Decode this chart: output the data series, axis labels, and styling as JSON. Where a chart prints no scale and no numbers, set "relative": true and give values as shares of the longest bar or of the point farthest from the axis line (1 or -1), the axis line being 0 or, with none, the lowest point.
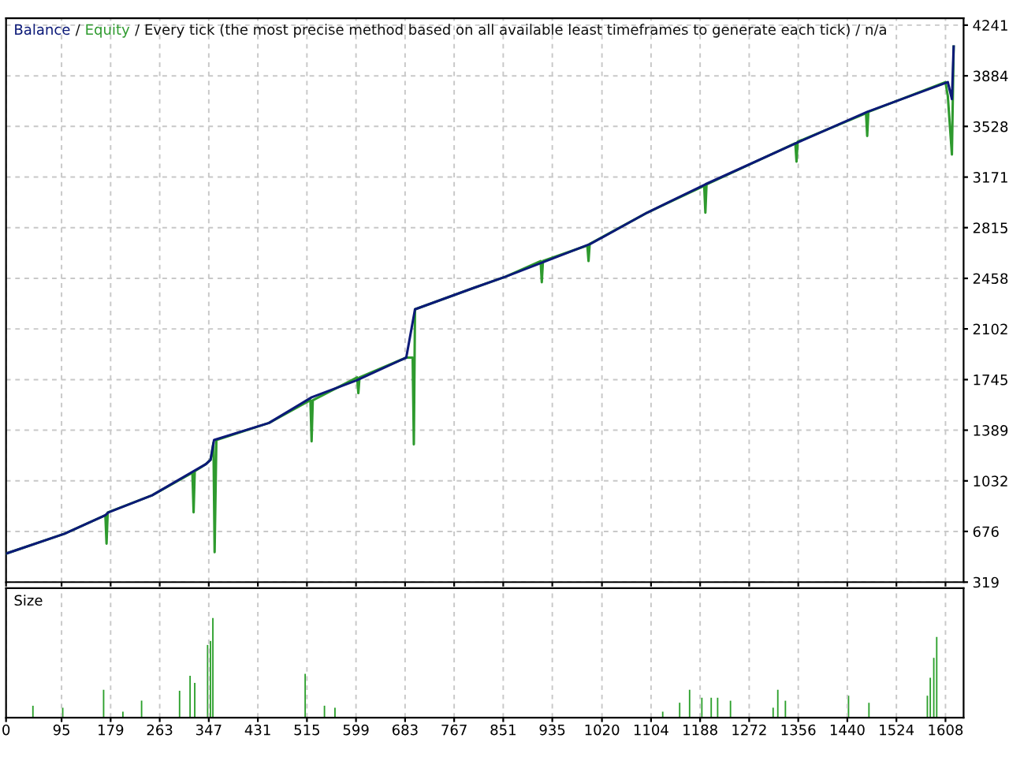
{
  "chart_data": [
    {
      "type": "line",
      "annotations": [
        "/"
      ],
      "subtitle": "/ Every tick (the most precise method based on all available least timeframes to generate each tick) / n/a",
      "series": [
        {
          "name": "Balance",
          "color": "#0c1a78",
          "x": [
            0,
            100,
            170,
            175,
            250,
            342,
            350,
            356,
            450,
            523,
            600,
            685,
            700,
            800,
            855,
            1000,
            1097,
            1197,
            1358,
            1474,
            1612,
            1619,
            1622
          ],
          "values": [
            520,
            660,
            790,
            810,
            930,
            1150,
            1180,
            1320,
            1440,
            1620,
            1740,
            1900,
            2240,
            2390,
            2470,
            2700,
            2920,
            3120,
            3420,
            3630,
            3840,
            3720,
            4090
          ]
        },
        {
          "name": "Equity",
          "color": "#2e9a2e",
          "x": [
            0,
            100,
            170,
            172,
            174,
            250,
            319,
            321,
            323,
            342,
            350,
            355,
            357,
            360,
            450,
            521,
            523,
            525,
            601,
            603,
            605,
            685,
            696,
            698,
            700,
            800,
            855,
            915,
            917,
            919,
            995,
            997,
            999,
            1097,
            1195,
            1197,
            1199,
            1351,
            1353,
            1355,
            1472,
            1474,
            1476,
            1608,
            1612,
            1619,
            1622
          ],
          "values": [
            520,
            660,
            790,
            590,
            810,
            930,
            1090,
            810,
            1100,
            1150,
            1180,
            1300,
            530,
            1320,
            1440,
            1600,
            1310,
            1600,
            1760,
            1650,
            1760,
            1900,
            1900,
            1290,
            2240,
            2390,
            2470,
            2580,
            2430,
            2580,
            2690,
            2580,
            2700,
            2920,
            3110,
            2920,
            3120,
            3410,
            3280,
            3420,
            3620,
            3460,
            3630,
            3840,
            3740,
            3330,
            4090
          ]
        }
      ],
      "xlim": [
        0,
        1639
      ],
      "ylim": [
        319,
        4290
      ],
      "yticks": [
        319,
        676,
        1032,
        1389,
        1745,
        2102,
        2458,
        2815,
        3171,
        3528,
        3884,
        4241
      ],
      "grid": true,
      "line_style": "solid",
      "tick_labels": "y"
    },
    {
      "type": "bar",
      "title": "Size",
      "relative": true,
      "color": "#2ca02c",
      "x": [
        46,
        97,
        167,
        200,
        232,
        297,
        315,
        323,
        345,
        350,
        354,
        512,
        545,
        563,
        1124,
        1153,
        1170,
        1191,
        1207,
        1218,
        1240,
        1313,
        1321,
        1334,
        1442,
        1477,
        1577,
        1582,
        1588,
        1593
      ],
      "values": [
        0.12,
        0.1,
        0.28,
        0.06,
        0.17,
        0.27,
        0.42,
        0.35,
        0.73,
        0.77,
        1,
        0.44,
        0.12,
        0.1,
        0.06,
        0.15,
        0.28,
        0.2,
        0.2,
        0.2,
        0.17,
        0.1,
        0.28,
        0.17,
        0.22,
        0.15,
        0.22,
        0.4,
        0.6,
        0.81
      ],
      "xlim": [
        0,
        1639
      ],
      "xticks": [
        0,
        95,
        179,
        263,
        347,
        431,
        515,
        599,
        683,
        767,
        851,
        935,
        1020,
        1104,
        1188,
        1272,
        1356,
        1440,
        1524,
        1608
      ],
      "grid": true,
      "tick_labels": "x"
    }
  ]
}
